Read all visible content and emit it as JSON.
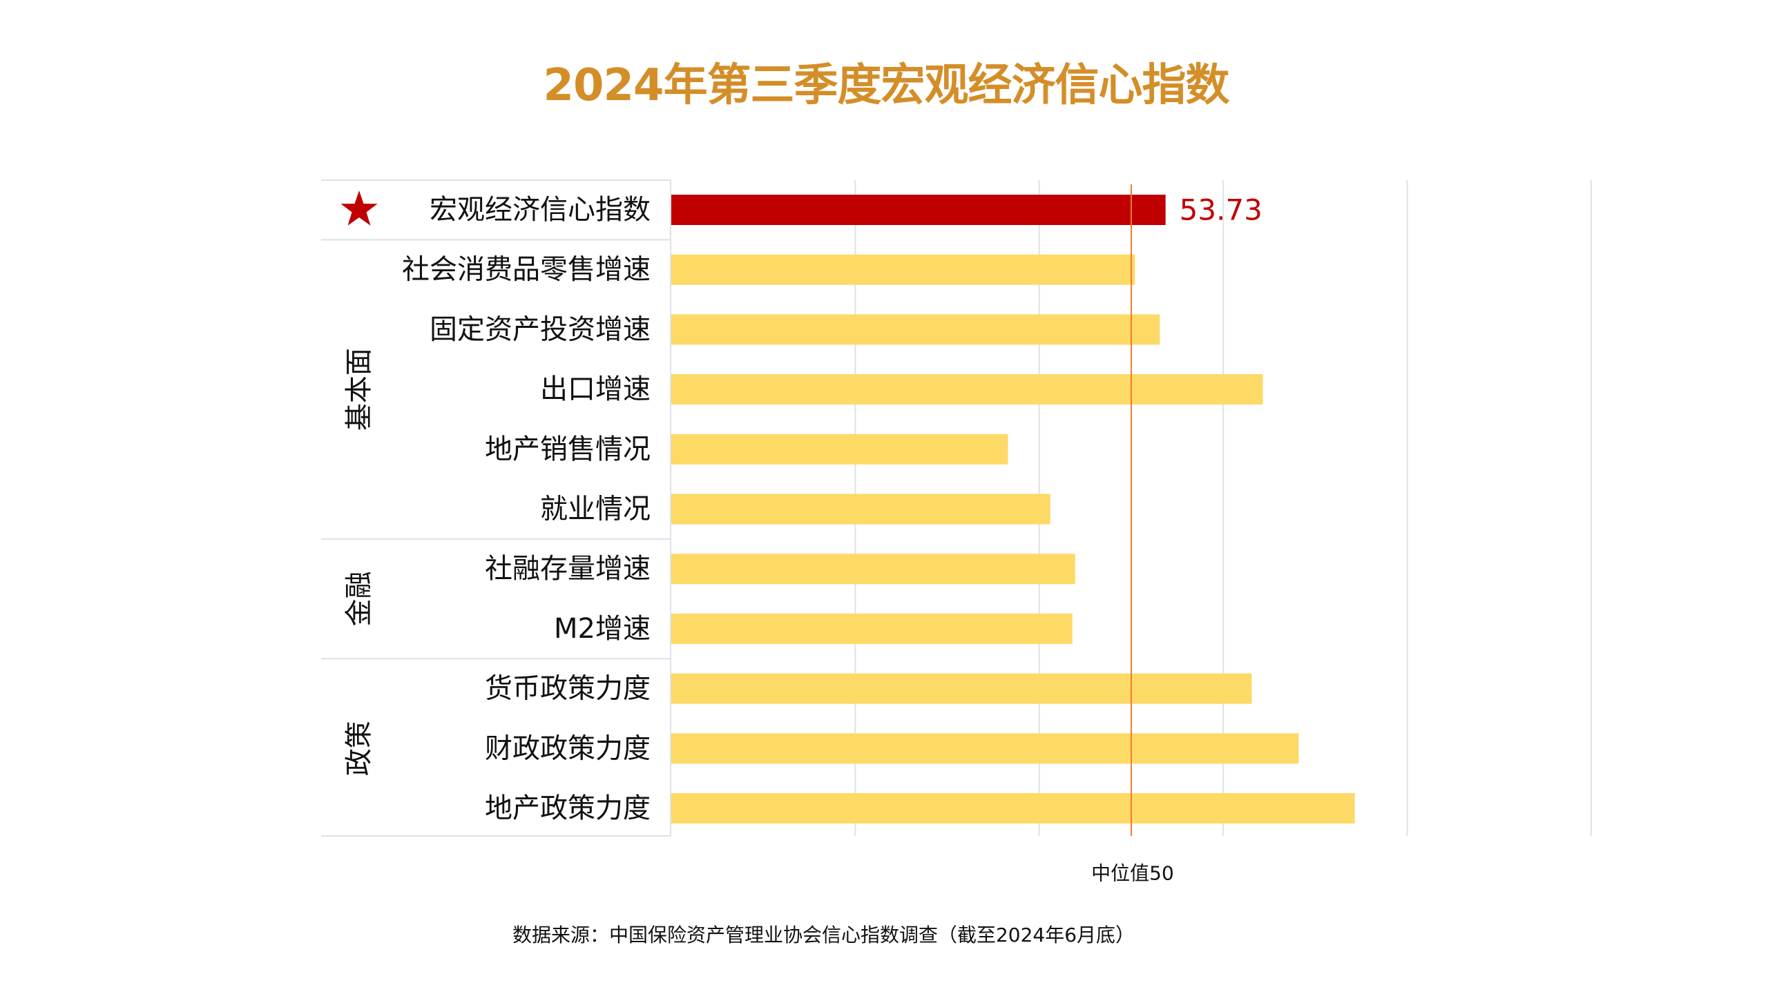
{
  "chart_data": {
    "type": "bar",
    "orientation": "horizontal",
    "title": "2024年第三季度宏观经济信心指数",
    "xlim": [
      0,
      100
    ],
    "gridlines": [
      20,
      40,
      60,
      80,
      100
    ],
    "grid": true,
    "tick_labels_shown": false,
    "reference_line": {
      "value": 50,
      "label": "中位值50"
    },
    "highlight": {
      "category": "宏观经济信心指数",
      "value": 53.73,
      "value_label": "53.73",
      "marker": "star"
    },
    "categories": [
      "宏观经济信心指数",
      "社会消费品零售增速",
      "固定资产投资增速",
      "出口增速",
      "地产销售情况",
      "就业情况",
      "社融存量增速",
      "M2增速",
      "货币政策力度",
      "财政政策力度",
      "地产政策力度"
    ],
    "values": [
      53.73,
      50.4,
      53.1,
      64.3,
      36.6,
      41.2,
      43.9,
      43.6,
      63.1,
      68.2,
      74.3
    ],
    "groups": [
      {
        "name": "",
        "rows": [
          0
        ]
      },
      {
        "name": "基本面",
        "rows": [
          1,
          2,
          3,
          4,
          5
        ]
      },
      {
        "name": "金融",
        "rows": [
          6,
          7
        ]
      },
      {
        "name": "政策",
        "rows": [
          8,
          9,
          10
        ]
      }
    ],
    "source": "数据来源：中国保险资产管理业协会信心指数调查（截至2024年6月底）"
  },
  "colors": {
    "title": "#D48E28",
    "highlight_bar": "#C00000",
    "bar": "#FDD966",
    "median_line": "#ED7D31",
    "grid": "#DDE2E8",
    "star": "#C00000"
  }
}
